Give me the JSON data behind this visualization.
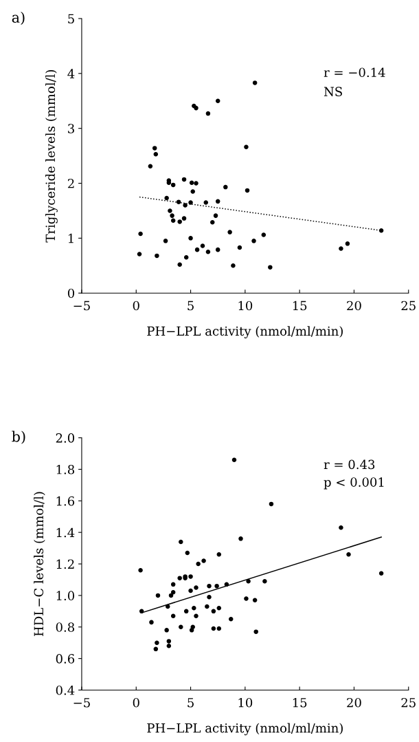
{
  "chart_data": [
    {
      "type": "scatter",
      "title": "a)",
      "xlabel": "PH−LPL activity (nmol/ml/min)",
      "ylabel": "Triglyceride levels (mmol/l)",
      "xlim": [
        -5,
        25
      ],
      "xticks": [
        {
          "value": -5,
          "label": "−5"
        },
        0,
        5,
        10,
        15,
        20,
        25
      ],
      "ylim": [
        0,
        5
      ],
      "yticks": [
        0,
        1,
        2,
        3,
        4,
        5
      ],
      "grid": false,
      "legend": false,
      "marker": "circle",
      "annotations": [
        "r = −0.14",
        "NS"
      ],
      "series": [
        {
          "color": "#000000",
          "x": [
            0.4,
            0.3,
            1.3,
            1.7,
            1.8,
            1.9,
            2.7,
            2.8,
            3.0,
            3.0,
            3.1,
            3.3,
            3.4,
            3.4,
            3.9,
            4.0,
            4.0,
            4.4,
            4.4,
            4.5,
            4.6,
            5.0,
            5.0,
            5.1,
            5.2,
            5.3,
            5.5,
            5.5,
            5.6,
            6.1,
            6.4,
            6.6,
            6.6,
            7.0,
            7.3,
            7.5,
            7.5,
            7.5,
            8.2,
            8.6,
            8.9,
            9.5,
            10.1,
            10.2,
            10.8,
            10.9,
            11.7,
            12.3,
            18.8,
            19.4,
            22.5
          ],
          "values": [
            1.08,
            0.71,
            2.31,
            2.64,
            2.53,
            0.68,
            0.95,
            1.73,
            2.05,
            2.01,
            1.5,
            1.41,
            1.97,
            1.32,
            1.66,
            1.3,
            0.52,
            2.07,
            1.36,
            1.6,
            0.65,
            1.65,
            1.0,
            2.01,
            1.85,
            3.41,
            3.37,
            2.0,
            0.79,
            0.86,
            1.65,
            3.27,
            0.75,
            1.29,
            1.41,
            1.67,
            0.79,
            3.5,
            1.93,
            1.11,
            0.5,
            0.83,
            2.66,
            1.87,
            0.95,
            3.83,
            1.06,
            0.47,
            0.81,
            0.9,
            1.14
          ]
        },
        {
          "type": "line",
          "color": "#000000",
          "line_style": "dotted",
          "marker": "none",
          "x": [
            0.3,
            22.5
          ],
          "values": [
            1.75,
            1.14
          ]
        }
      ]
    },
    {
      "type": "scatter",
      "title": "b)",
      "xlabel": "PH−LPL activity (nmol/ml/min)",
      "ylabel": "HDL−C levels (mmol/l)",
      "xlim": [
        -5,
        25
      ],
      "xticks": [
        {
          "value": -5,
          "label": "−5"
        },
        0,
        5,
        10,
        15,
        20,
        25
      ],
      "ylim": [
        0.4,
        2.0
      ],
      "yticks": [
        {
          "value": 0.4,
          "label": "0.4"
        },
        {
          "value": 0.6,
          "label": "0.6"
        },
        {
          "value": 0.8,
          "label": "0.8"
        },
        {
          "value": 1.0,
          "label": "1.0"
        },
        {
          "value": 1.2,
          "label": "1.2"
        },
        {
          "value": 1.4,
          "label": "1.4"
        },
        {
          "value": 1.6,
          "label": "1.6"
        },
        {
          "value": 1.8,
          "label": "1.8"
        },
        {
          "value": 2.0,
          "label": "2.0"
        }
      ],
      "grid": false,
      "legend": false,
      "marker": "circle",
      "annotations": [
        "r = 0.43",
        "p < 0.001"
      ],
      "series": [
        {
          "color": "#000000",
          "x": [
            0.4,
            0.5,
            1.4,
            1.9,
            1.8,
            2.0,
            2.8,
            2.9,
            3.0,
            3.0,
            3.2,
            3.4,
            3.4,
            3.4,
            4.0,
            4.1,
            4.1,
            4.5,
            4.5,
            4.6,
            4.7,
            5.0,
            5.0,
            5.1,
            5.2,
            5.3,
            5.5,
            5.5,
            5.7,
            6.2,
            6.5,
            6.7,
            6.7,
            7.1,
            7.1,
            7.4,
            7.6,
            7.6,
            7.6,
            8.3,
            8.7,
            9.0,
            9.6,
            10.1,
            10.3,
            10.9,
            11.0,
            11.8,
            12.4,
            18.8,
            19.5,
            22.5
          ],
          "values": [
            1.16,
            0.9,
            0.83,
            0.7,
            0.66,
            1.0,
            0.78,
            0.93,
            0.71,
            0.68,
            1.0,
            1.02,
            1.07,
            0.87,
            1.11,
            1.34,
            0.8,
            1.12,
            1.11,
            0.9,
            1.27,
            1.12,
            1.03,
            0.78,
            0.8,
            0.92,
            1.05,
            0.87,
            1.2,
            1.22,
            0.93,
            1.06,
            0.99,
            0.9,
            0.79,
            1.06,
            1.26,
            0.92,
            0.79,
            1.07,
            0.85,
            1.86,
            1.36,
            0.98,
            1.09,
            0.97,
            0.77,
            1.09,
            1.58,
            1.43,
            1.26,
            1.14
          ]
        },
        {
          "type": "line",
          "color": "#000000",
          "line_style": "solid",
          "marker": "none",
          "x": [
            0.5,
            22.5
          ],
          "values": [
            0.89,
            1.37
          ]
        }
      ]
    }
  ]
}
